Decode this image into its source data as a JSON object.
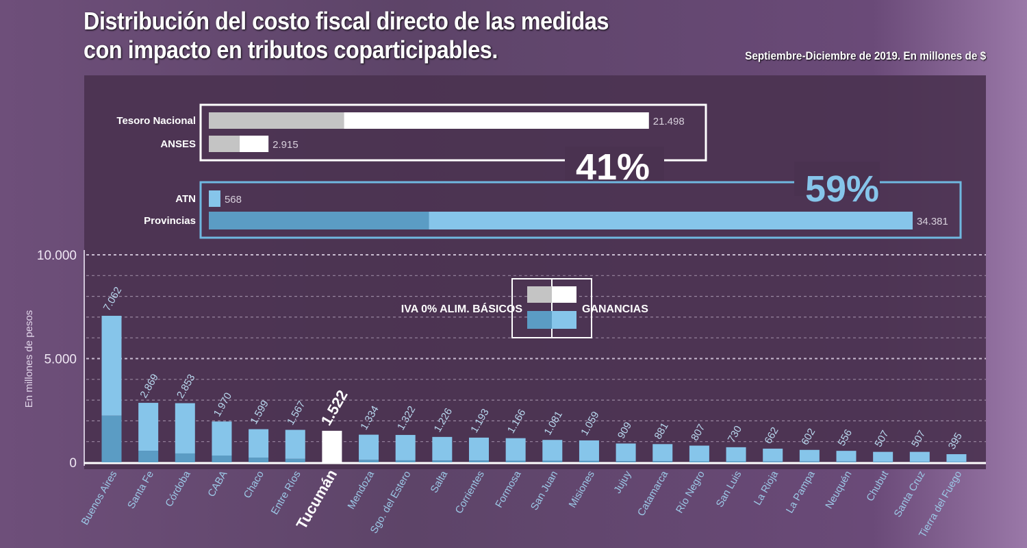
{
  "title_line1": "Distribución del costo fiscal directo de las medidas",
  "title_line2": "con impacto en tributos coparticipables.",
  "subtitle": "Septiembre-Diciembre de 2019. En millones de $",
  "colors": {
    "iva_gray": "#c4c4c4",
    "ganancias_white": "#ffffff",
    "iva_blue_dark": "#5b9cc4",
    "ganancias_blue": "#86c5ea",
    "highlight": "#ffffff",
    "background": "#5d4468"
  },
  "chart_data": [
    {
      "type": "bar",
      "orientation": "horizontal",
      "stacked": true,
      "groups": [
        {
          "percent_label": "41%",
          "categories": [
            "Tesoro Nacional",
            "ANSES"
          ],
          "totals": [
            21498,
            2915
          ],
          "total_labels": [
            "21.498",
            "2.915"
          ],
          "iva_values": [
            6600,
            1500
          ]
        },
        {
          "percent_label": "59%",
          "categories": [
            "ATN",
            "Provincias"
          ],
          "totals": [
            568,
            34381
          ],
          "total_labels": [
            "568",
            "34.381"
          ],
          "iva_values": [
            0,
            10750
          ]
        }
      ]
    },
    {
      "type": "bar",
      "stacked": true,
      "ylabel": "En millones de pesos",
      "ylim": [
        0,
        10000
      ],
      "yticks": [
        0,
        5000,
        10000
      ],
      "ytick_labels": [
        "0",
        "5.000",
        "10.000"
      ],
      "grid": true,
      "legend": {
        "position": "center",
        "labels": [
          "IVA 0% ALIM. BÁSICOS",
          "GANANCIAS"
        ]
      },
      "highlight": "Tucumán",
      "categories": [
        "Buenos Aires",
        "Santa Fe",
        "Córdoba",
        "CABA",
        "Chaco",
        "Entre Ríos",
        "Tucumán",
        "Mendoza",
        "Sgo. del Estero",
        "Salta",
        "Corrientes",
        "Formosa",
        "San Juan",
        "Misiones",
        "Jujuy",
        "Catamarca",
        "Río Negro",
        "San Luis",
        "La Rioja",
        "La Pampa",
        "Neuquén",
        "Chubut",
        "Santa Cruz",
        "Tierra del Fuego"
      ],
      "totals": [
        7062,
        2869,
        2853,
        1970,
        1599,
        1567,
        1522,
        1334,
        1322,
        1226,
        1193,
        1166,
        1081,
        1059,
        909,
        881,
        807,
        730,
        662,
        602,
        556,
        507,
        507,
        395
      ],
      "total_labels": [
        "7.062",
        "2.869",
        "2.853",
        "1.970",
        "1.599",
        "1.567",
        "1.522",
        "1.334",
        "1.322",
        "1.226",
        "1.193",
        "1.166",
        "1.081",
        "1.059",
        "909",
        "881",
        "807",
        "730",
        "662",
        "602",
        "556",
        "507",
        "507",
        "395"
      ],
      "iva_values": [
        2250,
        560,
        430,
        330,
        230,
        170,
        0,
        120,
        100,
        90,
        90,
        80,
        80,
        70,
        60,
        60,
        50,
        50,
        40,
        40,
        40,
        30,
        30,
        20
      ]
    }
  ]
}
